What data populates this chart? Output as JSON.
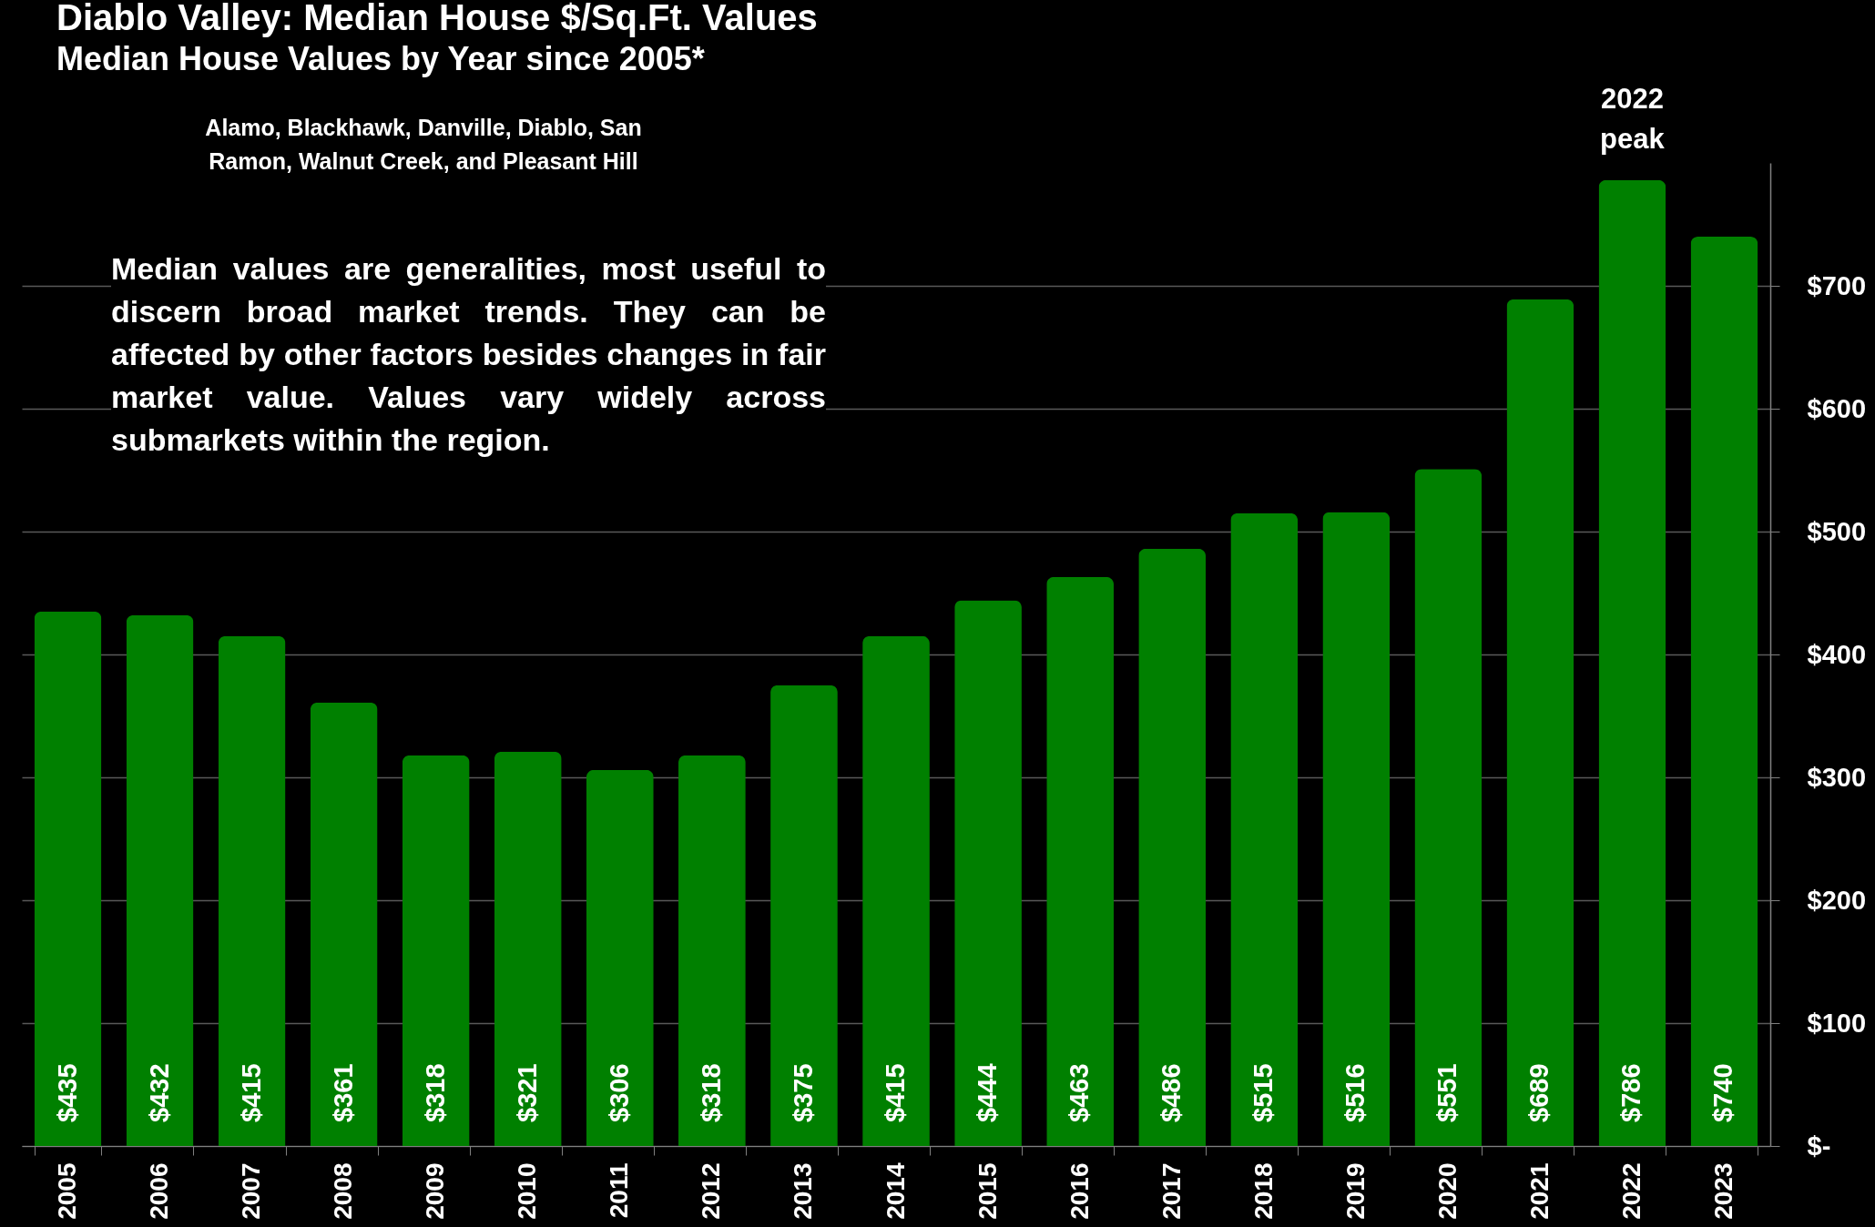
{
  "chart_data": {
    "type": "bar",
    "title": "Diablo Valley: Median House $/Sq.Ft. Values",
    "subtitle": "Median House Values by Year since 2005*",
    "categories": [
      "2005",
      "2006",
      "2007",
      "2008",
      "2009",
      "2010",
      "2011",
      "2012",
      "2013",
      "2014",
      "2015",
      "2016",
      "2017",
      "2018",
      "2019",
      "2020",
      "2021",
      "2022",
      "2023"
    ],
    "values": [
      435,
      432,
      415,
      361,
      318,
      321,
      306,
      318,
      375,
      415,
      444,
      463,
      486,
      515,
      516,
      551,
      689,
      786,
      740
    ],
    "value_labels": [
      "$435",
      "$432",
      "$415",
      "$361",
      "$318",
      "$321",
      "$306",
      "$318",
      "$375",
      "$415",
      "$444",
      "$463",
      "$486",
      "$515",
      "$516",
      "$551",
      "$689",
      "$786",
      "$740"
    ],
    "color": "#008000",
    "ylim": [
      0,
      800
    ],
    "yticks": [
      {
        "value": 0,
        "label": "$-"
      },
      {
        "value": 100,
        "label": "$100"
      },
      {
        "value": 200,
        "label": "$200"
      },
      {
        "value": 300,
        "label": "$300"
      },
      {
        "value": 400,
        "label": "$400"
      },
      {
        "value": 500,
        "label": "$500"
      },
      {
        "value": 600,
        "label": "$600"
      },
      {
        "value": 700,
        "label": "$700"
      }
    ],
    "grid": "y",
    "annotations": [
      {
        "text": "2022 peak",
        "x": "2022",
        "y": 786
      },
      "Alamo, Blackhawk, Danville, Diablo, San Ramon, Walnut Creek, and Pleasant Hill",
      "Median values are generalities, most useful to discern broad market trends. They can be affected by other factors besides changes in fair market value. Values vary widely across submarkets within the region."
    ]
  }
}
